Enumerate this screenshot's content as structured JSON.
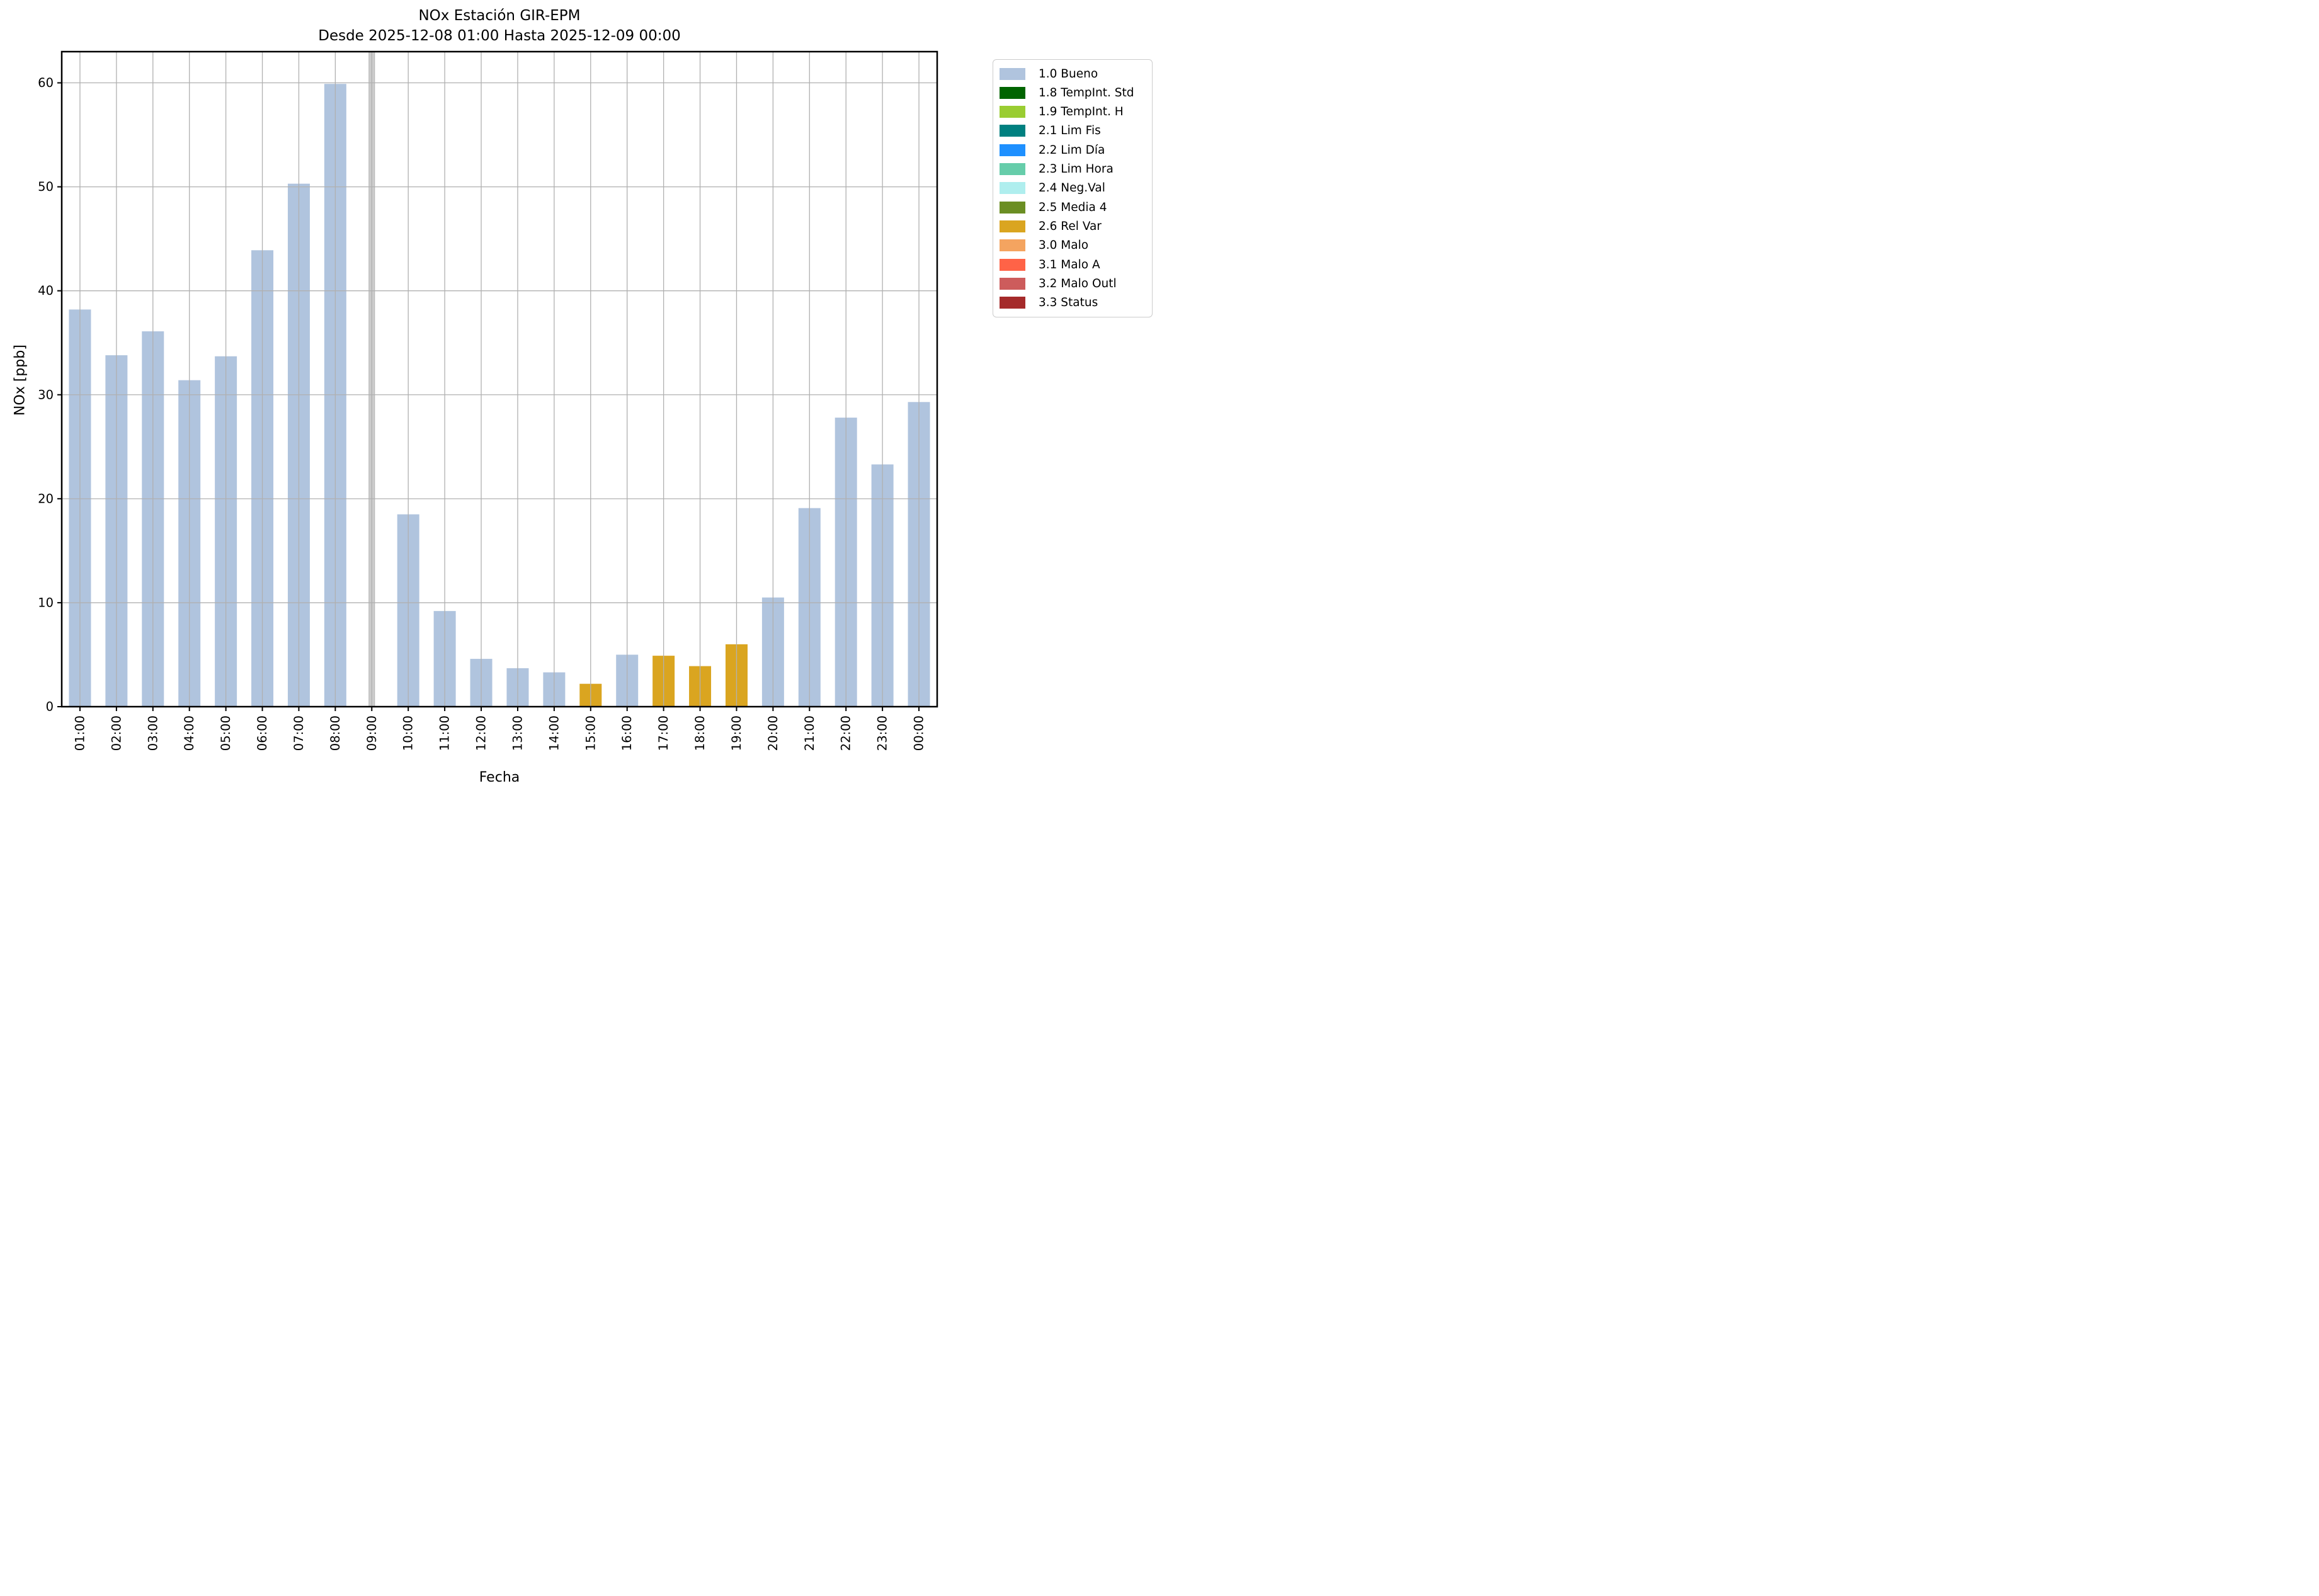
{
  "title": {
    "line1": "NOx Estación GIR-EPM",
    "line2": "Desde 2025-12-08 01:00 Hasta 2025-12-09 00:00"
  },
  "chart_data": {
    "type": "bar",
    "title": "NOx Estación GIR-EPM",
    "subtitle": "Desde 2025-12-08 01:00 Hasta 2025-12-09 00:00",
    "xlabel": "Fecha",
    "ylabel": "NOx [ppb]",
    "ylim": [
      0,
      63
    ],
    "yticks": [
      0,
      10,
      20,
      30,
      40,
      50,
      60
    ],
    "grid": true,
    "legend_position": "outside-right",
    "categories": [
      "01:00",
      "02:00",
      "03:00",
      "04:00",
      "05:00",
      "06:00",
      "07:00",
      "08:00",
      "09:00",
      "10:00",
      "11:00",
      "12:00",
      "13:00",
      "14:00",
      "15:00",
      "16:00",
      "17:00",
      "18:00",
      "19:00",
      "20:00",
      "21:00",
      "22:00",
      "23:00",
      "00:00"
    ],
    "values": [
      38.2,
      33.8,
      36.1,
      31.4,
      33.7,
      43.9,
      50.3,
      59.9,
      null,
      18.5,
      9.2,
      4.6,
      3.7,
      3.3,
      2.2,
      5.0,
      4.9,
      3.9,
      6.0,
      10.5,
      19.1,
      27.8,
      23.3,
      29.3
    ],
    "bar_status": [
      "bueno",
      "bueno",
      "bueno",
      "bueno",
      "bueno",
      "bueno",
      "bueno",
      "bueno",
      "nodata",
      "bueno",
      "bueno",
      "bueno",
      "bueno",
      "bueno",
      "relvar",
      "bueno",
      "relvar",
      "relvar",
      "relvar",
      "bueno",
      "bueno",
      "bueno",
      "bueno",
      "bueno"
    ],
    "nodata_note": "09:00 rendered as a narrow full-height gray bar (value beyond axis range)"
  },
  "legend": {
    "items": [
      {
        "label": "1.0 Bueno",
        "color": "#b0c4de"
      },
      {
        "label": "1.8 TempInt. Std",
        "color": "#006400"
      },
      {
        "label": "1.9 TempInt. H",
        "color": "#9acd32"
      },
      {
        "label": "2.1 Lim Fis",
        "color": "#008080"
      },
      {
        "label": "2.2 Lim Día",
        "color": "#1e90ff"
      },
      {
        "label": "2.3 Lim Hora",
        "color": "#66cdaa"
      },
      {
        "label": "2.4 Neg.Val",
        "color": "#afeeee"
      },
      {
        "label": "2.5 Media 4",
        "color": "#6b8e23"
      },
      {
        "label": "2.6 Rel Var",
        "color": "#daa520"
      },
      {
        "label": "3.0 Malo",
        "color": "#f4a460"
      },
      {
        "label": "3.1 Malo A",
        "color": "#ff6347"
      },
      {
        "label": "3.2 Malo Outl",
        "color": "#cd5c5c"
      },
      {
        "label": "3.3 Status",
        "color": "#a52a2a"
      }
    ]
  },
  "colors": {
    "bar_bueno": "#b0c4de",
    "bar_relvar": "#daa520",
    "bar_nodata": "#cdcdcd",
    "bar_nodata_edge": "#b3b3b3",
    "grid": "#b0b0b0",
    "spine": "#000000"
  }
}
